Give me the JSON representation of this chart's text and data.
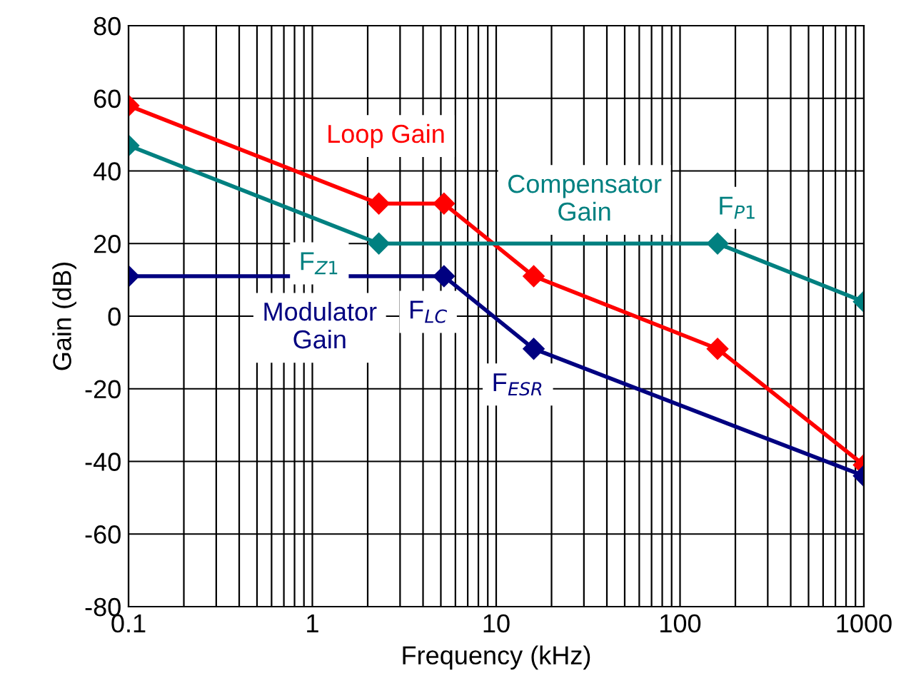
{
  "chart_data": {
    "type": "line",
    "xlabel": "Frequency (kHz)",
    "ylabel": "Gain (dB)",
    "log": "x",
    "xlim": [
      0.1,
      1000
    ],
    "ylim": [
      -80,
      80
    ],
    "xticks": [
      0.1,
      1,
      10,
      100,
      1000
    ],
    "yticks": [
      -80,
      -60,
      -40,
      -20,
      0,
      20,
      40,
      60,
      80
    ],
    "grid": true,
    "legend": false,
    "marker": "diamond",
    "line_style": "solid",
    "series": [
      {
        "name": "Loop Gain",
        "color": "#ff0000",
        "x": [
          0.1,
          2.3,
          5.2,
          16,
          160,
          1000
        ],
        "values": [
          58,
          31,
          31,
          11,
          -9,
          -41
        ]
      },
      {
        "name": "Compensator\nGain",
        "color": "#008080",
        "x": [
          0.1,
          2.3,
          160,
          1000
        ],
        "values": [
          47,
          20,
          20,
          4
        ]
      },
      {
        "name": "Modulator\nGain",
        "color": "#000080",
        "x": [
          0.1,
          5.2,
          16,
          1000
        ],
        "values": [
          11,
          11,
          -9,
          -44
        ]
      }
    ],
    "annotations": [
      {
        "text": "F$_{Z1}$",
        "x": 2.3,
        "y": 20
      },
      {
        "text": "F$_{P1}$",
        "x": 160,
        "y": 20
      },
      {
        "text": "F$_{LC}$",
        "x": 5.2,
        "y": 11
      },
      {
        "text": "F$_{ESR}$",
        "x": 16,
        "y": -9
      }
    ]
  }
}
